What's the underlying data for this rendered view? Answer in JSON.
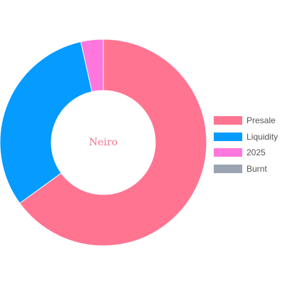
{
  "chart_data": {
    "type": "pie",
    "variant": "doughnut",
    "title": "",
    "center_label": "Neiro",
    "center_label_color": "#f0758f",
    "categories": [
      "Presale",
      "Liquidity",
      "2025",
      "Burnt"
    ],
    "values": [
      65,
      31.5,
      3.5,
      0
    ],
    "colors": [
      "#ff7591",
      "#059bff",
      "#ff77dd",
      "#9aa5b1"
    ],
    "legend_position": "right",
    "start_angle_deg": 0
  }
}
